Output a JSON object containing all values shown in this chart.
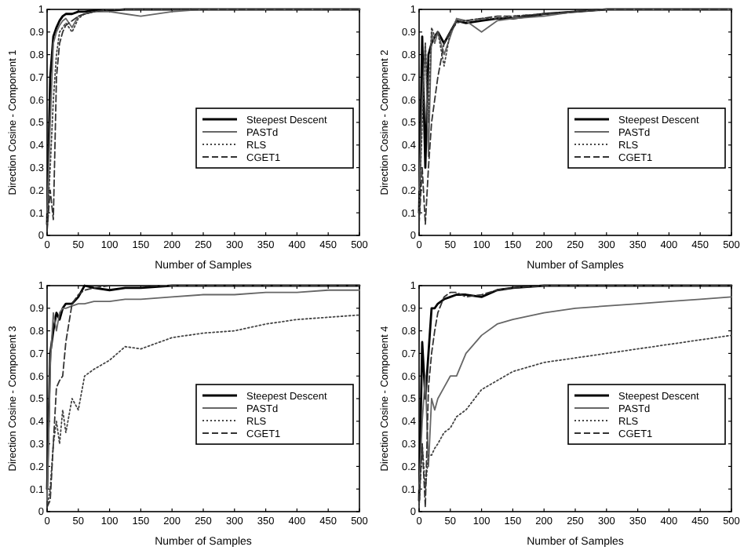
{
  "chart_data": [
    {
      "type": "line",
      "xlabel": "Number of Samples",
      "ylabel": "Direction Cosine - Component 1",
      "x": [
        0,
        5,
        10,
        15,
        20,
        25,
        30,
        40,
        50,
        60,
        75,
        100,
        125,
        150,
        200,
        250,
        300,
        350,
        400,
        450,
        500
      ],
      "xlim": [
        0,
        500
      ],
      "ylim": [
        0,
        1
      ],
      "xticks": [
        0,
        50,
        100,
        150,
        200,
        250,
        300,
        350,
        400,
        450,
        500
      ],
      "yticks": [
        0,
        0.1,
        0.2,
        0.3,
        0.4,
        0.5,
        0.6,
        0.7,
        0.8,
        0.9,
        1
      ],
      "grid": false,
      "legend": "right",
      "marker": "none",
      "series": [
        {
          "name": "Steepest Descent",
          "color": "#000000",
          "line_style": "solid",
          "values": [
            0.05,
            0.7,
            0.88,
            0.92,
            0.95,
            0.97,
            0.98,
            0.98,
            0.99,
            0.99,
            0.995,
            0.995,
            1,
            1,
            1,
            1,
            1,
            1,
            1,
            1,
            1
          ]
        },
        {
          "name": "PASTd",
          "color": "#666666",
          "line_style": "solid",
          "values": [
            0.1,
            0.5,
            0.85,
            0.9,
            0.93,
            0.95,
            0.96,
            0.92,
            0.97,
            0.98,
            0.99,
            0.99,
            0.98,
            0.97,
            0.99,
            1,
            1,
            1,
            1,
            1,
            1
          ]
        },
        {
          "name": "RLS",
          "color": "#444444",
          "line_style": "dotted",
          "values": [
            0.05,
            0.3,
            0.6,
            0.8,
            0.9,
            0.92,
            0.94,
            0.9,
            0.96,
            0.98,
            0.99,
            1,
            1,
            1,
            1,
            1,
            1,
            1,
            1,
            1,
            1
          ]
        },
        {
          "name": "CGET1",
          "color": "#333333",
          "line_style": "dashed",
          "values": [
            0.02,
            0.2,
            0.07,
            0.7,
            0.85,
            0.9,
            0.93,
            0.95,
            0.97,
            0.98,
            0.99,
            1,
            1,
            1,
            1,
            1,
            1,
            1,
            1,
            1,
            1
          ]
        }
      ]
    },
    {
      "type": "line",
      "xlabel": "Number of Samples",
      "ylabel": "Direction Cosine - Component 2",
      "x": [
        0,
        5,
        10,
        15,
        20,
        25,
        30,
        40,
        50,
        60,
        75,
        100,
        125,
        150,
        200,
        250,
        300,
        350,
        400,
        450,
        500
      ],
      "xlim": [
        0,
        500
      ],
      "ylim": [
        0,
        1
      ],
      "xticks": [
        0,
        50,
        100,
        150,
        200,
        250,
        300,
        350,
        400,
        450,
        500
      ],
      "yticks": [
        0,
        0.1,
        0.2,
        0.3,
        0.4,
        0.5,
        0.6,
        0.7,
        0.8,
        0.9,
        1
      ],
      "grid": false,
      "legend": "right",
      "marker": "none",
      "series": [
        {
          "name": "Steepest Descent",
          "color": "#000000",
          "line_style": "solid",
          "values": [
            0.1,
            0.88,
            0.3,
            0.8,
            0.85,
            0.88,
            0.9,
            0.85,
            0.9,
            0.95,
            0.94,
            0.95,
            0.96,
            0.96,
            0.98,
            0.99,
            1,
            1,
            1,
            1,
            1
          ]
        },
        {
          "name": "PASTd",
          "color": "#666666",
          "line_style": "solid",
          "values": [
            0.2,
            0.6,
            0.85,
            0.35,
            0.9,
            0.85,
            0.9,
            0.8,
            0.88,
            0.96,
            0.95,
            0.9,
            0.95,
            0.96,
            0.97,
            0.99,
            1,
            1,
            1,
            1,
            1
          ]
        },
        {
          "name": "RLS",
          "color": "#444444",
          "line_style": "dotted",
          "values": [
            0.1,
            0.5,
            0.85,
            0.5,
            0.92,
            0.88,
            0.9,
            0.75,
            0.9,
            0.95,
            0.95,
            0.96,
            0.96,
            0.97,
            0.98,
            0.99,
            1,
            1,
            1,
            1,
            1
          ]
        },
        {
          "name": "CGET1",
          "color": "#333333",
          "line_style": "dashed",
          "values": [
            0.05,
            0.3,
            0.05,
            0.3,
            0.5,
            0.6,
            0.7,
            0.85,
            0.9,
            0.94,
            0.95,
            0.96,
            0.97,
            0.97,
            0.98,
            0.99,
            1,
            1,
            1,
            1,
            1
          ]
        }
      ]
    },
    {
      "type": "line",
      "xlabel": "Number of Samples",
      "ylabel": "Direction Cosine - Component 3",
      "x": [
        0,
        5,
        10,
        15,
        20,
        25,
        30,
        40,
        50,
        60,
        75,
        100,
        125,
        150,
        200,
        250,
        300,
        350,
        400,
        450,
        500
      ],
      "xlim": [
        0,
        500
      ],
      "ylim": [
        0,
        1
      ],
      "xticks": [
        0,
        50,
        100,
        150,
        200,
        250,
        300,
        350,
        400,
        450,
        500
      ],
      "yticks": [
        0,
        0.1,
        0.2,
        0.3,
        0.4,
        0.5,
        0.6,
        0.7,
        0.8,
        0.9,
        1
      ],
      "grid": false,
      "legend": "right",
      "marker": "none",
      "series": [
        {
          "name": "Steepest Descent",
          "color": "#000000",
          "line_style": "solid",
          "values": [
            0.1,
            0.7,
            0.8,
            0.88,
            0.85,
            0.9,
            0.92,
            0.92,
            0.95,
            1,
            0.99,
            0.98,
            0.99,
            0.99,
            1,
            1,
            1,
            1,
            1,
            1,
            1
          ]
        },
        {
          "name": "PASTd",
          "color": "#666666",
          "line_style": "solid",
          "values": [
            0.05,
            0.65,
            0.88,
            0.8,
            0.88,
            0.9,
            0.9,
            0.91,
            0.92,
            0.92,
            0.93,
            0.93,
            0.94,
            0.94,
            0.95,
            0.96,
            0.96,
            0.97,
            0.97,
            0.98,
            0.98
          ]
        },
        {
          "name": "RLS",
          "color": "#444444",
          "line_style": "dotted",
          "values": [
            0.02,
            0.1,
            0.3,
            0.4,
            0.3,
            0.45,
            0.35,
            0.5,
            0.45,
            0.6,
            0.63,
            0.67,
            0.73,
            0.72,
            0.77,
            0.79,
            0.8,
            0.83,
            0.85,
            0.86,
            0.87
          ]
        },
        {
          "name": "CGET1",
          "color": "#333333",
          "line_style": "dashed",
          "values": [
            0.02,
            0.05,
            0.3,
            0.55,
            0.58,
            0.6,
            0.75,
            0.92,
            0.96,
            0.98,
            0.99,
            1,
            1,
            1,
            1,
            1,
            1,
            1,
            1,
            1,
            1
          ]
        }
      ]
    },
    {
      "type": "line",
      "xlabel": "Number of Samples",
      "ylabel": "Direction Cosine - Component 4",
      "x": [
        0,
        5,
        10,
        15,
        20,
        25,
        30,
        40,
        50,
        60,
        75,
        100,
        125,
        150,
        200,
        250,
        300,
        350,
        400,
        450,
        500
      ],
      "xlim": [
        0,
        500
      ],
      "ylim": [
        0,
        1
      ],
      "xticks": [
        0,
        50,
        100,
        150,
        200,
        250,
        300,
        350,
        400,
        450,
        500
      ],
      "yticks": [
        0,
        0.1,
        0.2,
        0.3,
        0.4,
        0.5,
        0.6,
        0.7,
        0.8,
        0.9,
        1
      ],
      "grid": false,
      "legend": "right",
      "marker": "none",
      "series": [
        {
          "name": "Steepest Descent",
          "color": "#000000",
          "line_style": "solid",
          "values": [
            0.05,
            0.75,
            0.5,
            0.7,
            0.9,
            0.9,
            0.92,
            0.94,
            0.95,
            0.96,
            0.96,
            0.95,
            0.98,
            0.99,
            1,
            1,
            1,
            1,
            1,
            1,
            1
          ]
        },
        {
          "name": "PASTd",
          "color": "#666666",
          "line_style": "solid",
          "values": [
            0.1,
            0.4,
            0.6,
            0.2,
            0.5,
            0.45,
            0.5,
            0.55,
            0.6,
            0.6,
            0.7,
            0.78,
            0.83,
            0.85,
            0.88,
            0.9,
            0.91,
            0.92,
            0.93,
            0.94,
            0.95
          ]
        },
        {
          "name": "RLS",
          "color": "#444444",
          "line_style": "dotted",
          "values": [
            0.02,
            0.3,
            0.1,
            0.25,
            0.25,
            0.28,
            0.3,
            0.35,
            0.37,
            0.42,
            0.45,
            0.54,
            0.58,
            0.62,
            0.66,
            0.68,
            0.7,
            0.72,
            0.74,
            0.76,
            0.78
          ]
        },
        {
          "name": "CGET1",
          "color": "#333333",
          "line_style": "dashed",
          "values": [
            0.05,
            0.3,
            0.02,
            0.55,
            0.7,
            0.8,
            0.88,
            0.95,
            0.97,
            0.97,
            0.95,
            0.96,
            0.98,
            0.99,
            1,
            1,
            1,
            1,
            1,
            1,
            1
          ]
        }
      ]
    }
  ]
}
